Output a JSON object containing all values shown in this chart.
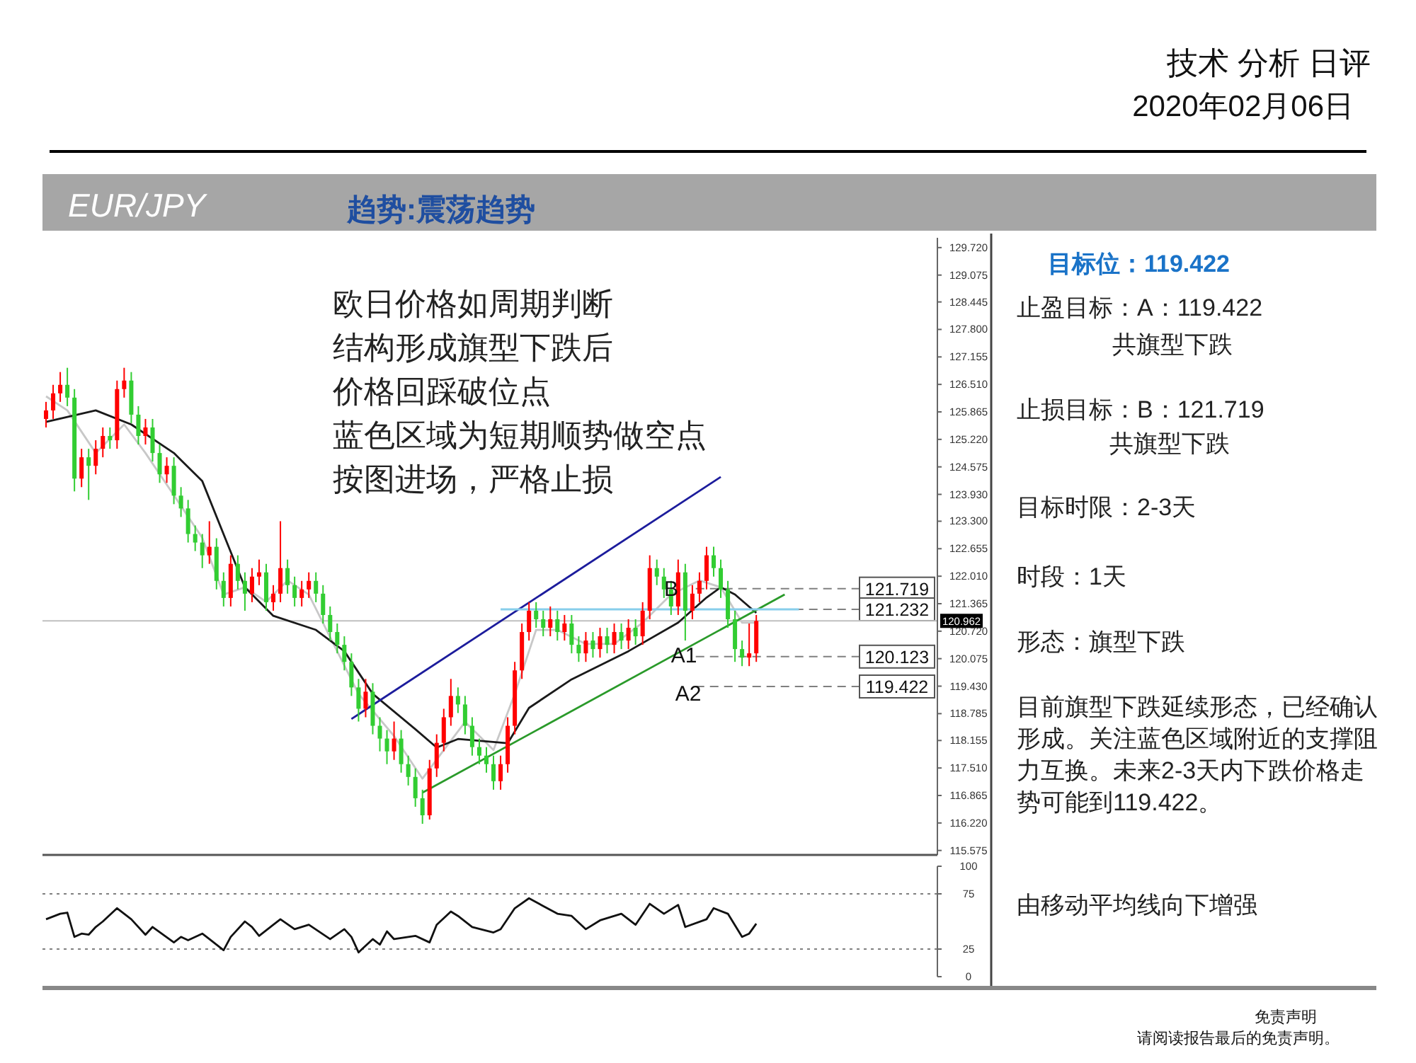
{
  "chart_data": [
    {
      "type": "candlestick",
      "title": "EUR/JPY",
      "subtitle": "趋势:震荡趋势",
      "categories": [
        null,
        null,
        null,
        null,
        null,
        null,
        null,
        null,
        null,
        null,
        null,
        null,
        null,
        null,
        null,
        null,
        null,
        null,
        null,
        null,
        null,
        null,
        null,
        null,
        null,
        null,
        null,
        null,
        null,
        null,
        null,
        null,
        null,
        null,
        null,
        null,
        null,
        null,
        null,
        null,
        null,
        null,
        null,
        null,
        null,
        null,
        null,
        null,
        null,
        null,
        null,
        null,
        null,
        null,
        null,
        null,
        null,
        null,
        null,
        null,
        null,
        null,
        null,
        null,
        null,
        null,
        null,
        null,
        null,
        null,
        null,
        null,
        null,
        null,
        null,
        null,
        null,
        null,
        null,
        null,
        null,
        null,
        null,
        null,
        null,
        null,
        null,
        null,
        null,
        null,
        null,
        null,
        null,
        null,
        null,
        null,
        null,
        null,
        null,
        null,
        null,
        null,
        null,
        null,
        null,
        null,
        null,
        null,
        null,
        null,
        null,
        null,
        null,
        null,
        null,
        null,
        null,
        null,
        null,
        null,
        null,
        null,
        null,
        null,
        null,
        null
      ],
      "ylim": [
        115.47,
        129.95
      ],
      "grid": false,
      "yticks": [
        {
          "value": 129.72,
          "label": "129.720"
        },
        {
          "value": 129.075,
          "label": "129.075"
        },
        {
          "value": 128.445,
          "label": "128.445"
        },
        {
          "value": 127.8,
          "label": "127.800"
        },
        {
          "value": 127.155,
          "label": "127.155"
        },
        {
          "value": 126.51,
          "label": "126.510"
        },
        {
          "value": 125.865,
          "label": "125.865"
        },
        {
          "value": 125.22,
          "label": "125.220"
        },
        {
          "value": 124.575,
          "label": "124.575"
        },
        {
          "value": 123.93,
          "label": "123.930"
        },
        {
          "value": 123.3,
          "label": "123.300"
        },
        {
          "value": 122.655,
          "label": "122.655"
        },
        {
          "value": 122.01,
          "label": "122.010"
        },
        {
          "value": 121.365,
          "label": "121.365"
        },
        {
          "value": 120.72,
          "label": "120.720"
        },
        {
          "value": 120.075,
          "label": "120.075"
        },
        {
          "value": 119.43,
          "label": "119.430"
        },
        {
          "value": 118.785,
          "label": "118.785"
        },
        {
          "value": 118.155,
          "label": "118.155"
        },
        {
          "value": 117.51,
          "label": "117.510"
        },
        {
          "value": 116.865,
          "label": "116.865"
        },
        {
          "value": 116.22,
          "label": "116.220"
        },
        {
          "value": 115.575,
          "label": "115.575"
        }
      ],
      "series": [
        {
          "ohlc": [
            [
              125.7,
              126.1,
              125.5,
              125.9
            ],
            [
              125.9,
              126.5,
              125.7,
              126.3
            ],
            [
              126.3,
              126.8,
              126.1,
              126.5
            ],
            [
              126.5,
              126.9,
              126.0,
              126.2
            ],
            [
              126.2,
              126.4,
              124.0,
              124.3
            ],
            [
              124.3,
              125.0,
              124.1,
              124.8
            ],
            [
              124.8,
              125.0,
              123.8,
              124.6
            ],
            [
              124.6,
              125.2,
              124.4,
              125.0
            ],
            [
              125.0,
              125.5,
              124.8,
              125.3
            ],
            [
              125.3,
              125.5,
              125.0,
              125.2
            ],
            [
              125.2,
              126.6,
              125.0,
              126.4
            ],
            [
              126.4,
              126.9,
              126.2,
              126.6
            ],
            [
              126.6,
              126.8,
              125.6,
              125.8
            ],
            [
              125.8,
              126.0,
              125.1,
              125.3
            ],
            [
              125.3,
              125.7,
              125.1,
              125.5
            ],
            [
              125.5,
              125.7,
              124.7,
              124.9
            ],
            [
              124.9,
              125.1,
              124.2,
              124.4
            ],
            [
              124.4,
              124.8,
              124.2,
              124.6
            ],
            [
              124.6,
              124.8,
              123.7,
              123.9
            ],
            [
              123.9,
              124.1,
              123.4,
              123.6
            ],
            [
              123.6,
              123.8,
              122.8,
              123.0
            ],
            [
              123.0,
              123.2,
              122.6,
              122.8
            ],
            [
              122.8,
              123.0,
              122.2,
              122.5
            ],
            [
              122.5,
              123.3,
              122.3,
              122.7
            ],
            [
              122.7,
              122.9,
              121.7,
              121.9
            ],
            [
              121.9,
              122.1,
              121.3,
              121.5
            ],
            [
              121.5,
              122.5,
              121.3,
              122.3
            ],
            [
              122.3,
              122.5,
              121.7,
              121.9
            ],
            [
              121.9,
              122.1,
              121.2,
              121.6
            ],
            [
              121.6,
              122.2,
              121.4,
              122.0
            ],
            [
              122.0,
              122.4,
              121.8,
              122.1
            ],
            [
              122.1,
              122.3,
              121.2,
              121.4
            ],
            [
              121.4,
              121.8,
              121.2,
              121.6
            ],
            [
              121.6,
              123.3,
              121.4,
              122.2
            ],
            [
              122.2,
              122.4,
              121.6,
              121.8
            ],
            [
              121.8,
              122.0,
              121.3,
              121.5
            ],
            [
              121.5,
              121.9,
              121.3,
              121.7
            ],
            [
              121.7,
              122.1,
              121.5,
              121.9
            ],
            [
              121.9,
              122.1,
              121.4,
              121.6
            ],
            [
              121.6,
              121.8,
              120.9,
              121.1
            ],
            [
              121.1,
              121.3,
              120.5,
              120.7
            ],
            [
              120.7,
              120.9,
              120.2,
              120.4
            ],
            [
              120.4,
              120.6,
              119.8,
              120.0
            ],
            [
              120.0,
              120.2,
              119.2,
              119.4
            ],
            [
              119.4,
              119.6,
              118.6,
              118.9
            ],
            [
              118.9,
              119.6,
              118.7,
              119.3
            ],
            [
              119.3,
              119.5,
              118.3,
              118.5
            ],
            [
              118.5,
              118.7,
              117.9,
              118.2
            ],
            [
              118.2,
              118.4,
              117.6,
              117.9
            ],
            [
              117.9,
              118.6,
              117.7,
              118.2
            ],
            [
              118.2,
              118.4,
              117.4,
              117.6
            ],
            [
              117.6,
              117.8,
              117.1,
              117.3
            ],
            [
              117.3,
              117.5,
              116.6,
              116.8
            ],
            [
              116.8,
              117.0,
              116.2,
              116.4
            ],
            [
              116.4,
              117.7,
              116.3,
              117.5
            ],
            [
              117.5,
              118.3,
              117.3,
              118.1
            ],
            [
              118.1,
              118.9,
              117.9,
              118.7
            ],
            [
              118.7,
              119.6,
              118.5,
              119.2
            ],
            [
              119.2,
              119.4,
              118.8,
              119.0
            ],
            [
              119.0,
              119.2,
              118.3,
              118.5
            ],
            [
              118.5,
              118.7,
              117.8,
              118.0
            ],
            [
              118.0,
              118.2,
              117.6,
              117.8
            ],
            [
              117.8,
              118.0,
              117.4,
              117.6
            ],
            [
              117.6,
              117.8,
              117.0,
              117.2
            ],
            [
              117.2,
              117.8,
              117.0,
              117.6
            ],
            [
              117.6,
              118.7,
              117.4,
              118.5
            ],
            [
              118.5,
              120.0,
              118.3,
              119.8
            ],
            [
              119.8,
              120.9,
              119.6,
              120.7
            ],
            [
              120.7,
              121.4,
              120.5,
              121.2
            ],
            [
              121.2,
              121.4,
              120.8,
              121.0
            ],
            [
              121.0,
              121.2,
              120.6,
              120.8
            ],
            [
              120.8,
              121.3,
              120.6,
              121.0
            ],
            [
              121.0,
              121.2,
              120.5,
              120.7
            ],
            [
              120.7,
              121.1,
              120.5,
              120.9
            ],
            [
              120.9,
              121.1,
              120.2,
              120.4
            ],
            [
              120.4,
              120.6,
              120.0,
              120.2
            ],
            [
              120.2,
              120.7,
              120.0,
              120.5
            ],
            [
              120.5,
              120.7,
              120.1,
              120.3
            ],
            [
              120.3,
              120.8,
              120.1,
              120.6
            ],
            [
              120.6,
              120.8,
              120.2,
              120.4
            ],
            [
              120.4,
              120.9,
              120.2,
              120.7
            ],
            [
              120.7,
              120.9,
              120.3,
              120.5
            ],
            [
              120.5,
              121.0,
              120.3,
              120.8
            ],
            [
              120.8,
              121.0,
              120.4,
              120.6
            ],
            [
              120.6,
              121.4,
              120.4,
              121.2
            ],
            [
              121.2,
              122.5,
              121.0,
              122.2
            ],
            [
              122.2,
              122.4,
              121.8,
              122.0
            ],
            [
              122.0,
              122.2,
              121.5,
              121.7
            ],
            [
              121.7,
              121.9,
              121.1,
              121.3
            ],
            [
              121.3,
              122.4,
              121.1,
              122.1
            ],
            [
              122.1,
              122.3,
              120.5,
              121.2
            ],
            [
              121.2,
              121.8,
              121.0,
              121.6
            ],
            [
              121.6,
              122.1,
              121.4,
              121.9
            ],
            [
              121.9,
              122.7,
              121.7,
              122.5
            ],
            [
              122.5,
              122.7,
              122.0,
              122.2
            ],
            [
              122.2,
              122.4,
              121.5,
              121.7
            ],
            [
              121.7,
              121.9,
              120.8,
              121.0
            ],
            [
              121.0,
              121.2,
              120.0,
              120.3
            ],
            [
              120.3,
              120.5,
              119.9,
              120.1
            ],
            [
              120.1,
              120.9,
              119.9,
              120.2
            ],
            [
              120.2,
              121.1,
              120.0,
              120.96
            ],
            null,
            null,
            null,
            null,
            null,
            null,
            null,
            null,
            null,
            null,
            null,
            null,
            null,
            null,
            null,
            null,
            null,
            null,
            null,
            null,
            null,
            null,
            null,
            null,
            null
          ],
          "colors": [
            "#ff0000",
            "#ff0000",
            "#ff0000",
            "#32cd32",
            "#32cd32",
            "#ff0000",
            "#32cd32",
            "#ff0000",
            "#ff0000",
            "#32cd32",
            "#ff0000",
            "#ff0000",
            "#32cd32",
            "#32cd32",
            "#ff0000",
            "#32cd32",
            "#32cd32",
            "#ff0000",
            "#32cd32",
            "#32cd32",
            "#32cd32",
            "#32cd32",
            "#32cd32",
            "#ff0000",
            "#32cd32",
            "#32cd32",
            "#ff0000",
            "#32cd32",
            "#32cd32",
            "#ff0000",
            "#ff0000",
            "#32cd32",
            "#ff0000",
            "#ff0000",
            "#32cd32",
            "#32cd32",
            "#ff0000",
            "#ff0000",
            "#32cd32",
            "#32cd32",
            "#32cd32",
            "#32cd32",
            "#32cd32",
            "#32cd32",
            "#32cd32",
            "#ff0000",
            "#32cd32",
            "#32cd32",
            "#32cd32",
            "#ff0000",
            "#32cd32",
            "#32cd32",
            "#32cd32",
            "#32cd32",
            "#ff0000",
            "#ff0000",
            "#ff0000",
            "#ff0000",
            "#32cd32",
            "#32cd32",
            "#32cd32",
            "#32cd32",
            "#32cd32",
            "#32cd32",
            "#ff0000",
            "#ff0000",
            "#ff0000",
            "#ff0000",
            "#ff0000",
            "#32cd32",
            "#32cd32",
            "#ff0000",
            "#32cd32",
            "#ff0000",
            "#32cd32",
            "#32cd32",
            "#ff0000",
            "#32cd32",
            "#ff0000",
            "#32cd32",
            "#ff0000",
            "#32cd32",
            "#ff0000",
            "#32cd32",
            "#ff0000",
            "#ff0000",
            "#32cd32",
            "#32cd32",
            "#32cd32",
            "#ff0000",
            "#32cd32",
            "#ff0000",
            "#ff0000",
            "#ff0000",
            "#32cd32",
            "#32cd32",
            "#32cd32",
            "#32cd32",
            "#32cd32",
            "#ff0000",
            "#ff0000",
            null,
            null,
            null,
            null,
            null,
            null,
            null,
            null,
            null,
            null,
            null,
            null,
            null,
            null,
            null,
            null,
            null,
            null,
            null,
            null,
            null,
            null,
            null,
            null,
            null
          ]
        },
        {
          "type": "line",
          "color": "#c8c8c8",
          "values": [
            126.23,
            null,
            null,
            125.9,
            null,
            null,
            null,
            124.9,
            null,
            null,
            null,
            125.57,
            null,
            null,
            124.9,
            null,
            null,
            null,
            123.91,
            null,
            null,
            null,
            122.91,
            null,
            null,
            121.58,
            null,
            null,
            121.75,
            null,
            null,
            121.41,
            null,
            null,
            121.91,
            null,
            null,
            121.58,
            null,
            null,
            120.58,
            null,
            null,
            null,
            119.25,
            null,
            null,
            null,
            null,
            118.26,
            null,
            null,
            null,
            117.26,
            null,
            null,
            117.93,
            null,
            null,
            118.59,
            null,
            null,
            null,
            117.93,
            null,
            null,
            119.25,
            null,
            null,
            120.75,
            null,
            null,
            120.75,
            null,
            null,
            null,
            120.42,
            null,
            null,
            null,
            120.42,
            null,
            null,
            null,
            120.92,
            null,
            null,
            null,
            121.58,
            null,
            null,
            null,
            121.91,
            null,
            null,
            121.75,
            null,
            null,
            120.92,
            null,
            120.92,
            null,
            null,
            null,
            null,
            null,
            null,
            null,
            null,
            null,
            null,
            null,
            null,
            null,
            null,
            null,
            null,
            null,
            null,
            null,
            null,
            null,
            null,
            null,
            null,
            null
          ]
        },
        {
          "type": "line",
          "color": "#1a1a1a",
          "values": [
            125.63,
            null,
            null,
            null,
            null,
            null,
            null,
            125.9,
            null,
            null,
            null,
            null,
            125.57,
            null,
            null,
            null,
            null,
            null,
            124.9,
            null,
            null,
            null,
            124.24,
            null,
            null,
            null,
            122.58,
            null,
            121.75,
            null,
            null,
            null,
            121.08,
            null,
            null,
            null,
            null,
            null,
            120.75,
            null,
            null,
            null,
            120.25,
            null,
            null,
            null,
            119.25,
            null,
            null,
            null,
            null,
            null,
            118.42,
            null,
            null,
            117.99,
            null,
            null,
            118.19,
            null,
            null,
            null,
            null,
            null,
            null,
            118.09,
            null,
            null,
            118.92,
            null,
            null,
            null,
            null,
            null,
            119.59,
            null,
            null,
            null,
            null,
            null,
            null,
            null,
            120.25,
            null,
            null,
            null,
            null,
            null,
            null,
            120.92,
            null,
            null,
            null,
            121.51,
            null,
            121.75,
            null,
            121.58,
            null,
            null,
            121.15,
            null,
            null,
            null,
            null,
            null,
            null,
            null,
            null,
            null,
            null,
            null,
            null,
            null,
            null,
            null,
            null,
            null,
            null,
            null,
            null,
            null,
            null,
            null,
            null,
            null
          ]
        },
        {
          "type": "line",
          "color": "#1c1c9c",
          "values": [
            null,
            null,
            null,
            null,
            null,
            null,
            null,
            null,
            null,
            null,
            null,
            null,
            null,
            null,
            null,
            null,
            null,
            null,
            null,
            null,
            null,
            null,
            null,
            null,
            null,
            null,
            null,
            null,
            null,
            null,
            null,
            null,
            null,
            null,
            null,
            null,
            null,
            null,
            null,
            null,
            null,
            null,
            null,
            118.66,
            null,
            null,
            null,
            null,
            null,
            null,
            null,
            null,
            null,
            null,
            null,
            null,
            null,
            null,
            null,
            null,
            null,
            null,
            null,
            null,
            null,
            null,
            null,
            null,
            null,
            null,
            null,
            null,
            null,
            null,
            null,
            null,
            null,
            null,
            null,
            null,
            null,
            null,
            null,
            null,
            null,
            null,
            null,
            null,
            null,
            null,
            null,
            null,
            null,
            null,
            null,
            124.34,
            null,
            null,
            null,
            null,
            null,
            null,
            null,
            null,
            null,
            null,
            null,
            null,
            null,
            null,
            null,
            null,
            null,
            null,
            null,
            null,
            null,
            null,
            null,
            null,
            null,
            null,
            null,
            null,
            null,
            null
          ]
        },
        {
          "type": "line",
          "color": "#2a9a2a",
          "values": [
            null,
            null,
            null,
            null,
            null,
            null,
            null,
            null,
            null,
            null,
            null,
            null,
            null,
            null,
            null,
            null,
            null,
            null,
            null,
            null,
            null,
            null,
            null,
            null,
            null,
            null,
            null,
            null,
            null,
            null,
            null,
            null,
            null,
            null,
            null,
            null,
            null,
            null,
            null,
            null,
            null,
            null,
            null,
            null,
            null,
            null,
            null,
            null,
            null,
            null,
            null,
            null,
            null,
            116.93,
            null,
            null,
            null,
            null,
            null,
            null,
            null,
            null,
            null,
            null,
            null,
            null,
            null,
            null,
            null,
            null,
            null,
            null,
            null,
            null,
            null,
            null,
            null,
            null,
            null,
            null,
            null,
            null,
            null,
            null,
            null,
            null,
            null,
            null,
            null,
            null,
            null,
            null,
            null,
            null,
            null,
            null,
            null,
            null,
            null,
            null,
            null,
            null,
            null,
            null,
            121.58,
            null,
            null,
            null,
            null,
            null,
            null,
            null,
            null,
            null,
            null,
            null,
            null,
            null,
            null,
            null,
            null,
            null,
            null,
            null,
            null,
            null
          ]
        },
        {
          "type": "line",
          "color": "#87ceeb",
          "values": [
            null,
            null,
            null,
            null,
            null,
            null,
            null,
            null,
            null,
            null,
            null,
            null,
            null,
            null,
            null,
            null,
            null,
            null,
            null,
            null,
            null,
            null,
            null,
            null,
            null,
            null,
            null,
            null,
            null,
            null,
            null,
            null,
            null,
            null,
            null,
            null,
            null,
            null,
            null,
            null,
            null,
            null,
            null,
            null,
            null,
            null,
            null,
            null,
            null,
            null,
            null,
            null,
            null,
            null,
            null,
            null,
            null,
            null,
            null,
            null,
            null,
            null,
            null,
            null,
            121.232,
            null,
            null,
            null,
            null,
            null,
            null,
            null,
            null,
            null,
            null,
            null,
            null,
            null,
            null,
            null,
            null,
            null,
            null,
            null,
            null,
            null,
            null,
            null,
            null,
            null,
            null,
            null,
            null,
            null,
            null,
            null,
            null,
            null,
            null,
            null,
            null,
            null,
            null,
            null,
            null,
            null,
            121.232,
            null,
            null,
            null,
            null,
            null,
            null,
            null,
            null,
            null,
            null,
            null,
            null,
            null,
            null,
            null,
            null,
            null,
            null,
            null
          ]
        }
      ],
      "ref_lines": [
        {
          "axis": "y",
          "value": 121.719,
          "label": "121.719",
          "line_style": "dashed",
          "color": "#808080"
        },
        {
          "axis": "y",
          "value": 121.232,
          "label": "121.232",
          "line_style": "dashed",
          "color": "#808080"
        },
        {
          "axis": "y",
          "value": 120.123,
          "label": "120.123",
          "line_style": "dashed",
          "color": "#808080"
        },
        {
          "axis": "y",
          "value": 119.422,
          "label": "119.422",
          "line_style": "dashed",
          "color": "#808080"
        },
        {
          "axis": "y",
          "value": 120.962,
          "label": "120.962",
          "line_style": "solid",
          "color": "#c0c0c0"
        }
      ],
      "annotations": [
        "技术 分析 日评",
        "2020年02月06日",
        "欧日价格如周期判断",
        "结构形成旗型下跌后",
        "价格回踩破位点",
        "蓝色区域为短期顺势做空点",
        "按图进场，严格止损",
        "目标位：119.422",
        "止盈目标：A：119.422",
        "共旗型下跌",
        "止损目标：B：121.719",
        "共旗型下跌",
        "目标时限：2-3天",
        "时段：1天",
        "形态：旗型下跌",
        "目前旗型下跌延续形态，已经确认形成。关注蓝色区域附近的支撑阻力互换。未来2-3天内下跌价格走势可能到119.422。",
        "由移动平均线向下增强",
        "免责声明",
        "请阅读报告最后的免责声明。",
        "B",
        "A1",
        "A2"
      ]
    },
    {
      "type": "line",
      "categories": [
        null,
        null,
        null,
        null,
        null,
        null,
        null,
        null,
        null,
        null,
        null,
        null,
        null,
        null,
        null,
        null,
        null,
        null,
        null,
        null,
        null,
        null,
        null,
        null,
        null,
        null,
        null,
        null,
        null,
        null,
        null,
        null,
        null,
        null,
        null,
        null,
        null,
        null,
        null,
        null,
        null,
        null,
        null,
        null,
        null,
        null,
        null,
        null,
        null,
        null,
        null,
        null,
        null,
        null,
        null,
        null,
        null,
        null,
        null,
        null,
        null,
        null,
        null,
        null,
        null,
        null,
        null,
        null,
        null,
        null,
        null,
        null,
        null,
        null,
        null,
        null,
        null,
        null,
        null,
        null,
        null,
        null,
        null,
        null,
        null,
        null,
        null,
        null,
        null,
        null,
        null,
        null,
        null,
        null,
        null,
        null,
        null,
        null,
        null,
        null,
        null,
        null,
        null,
        null,
        null,
        null,
        null,
        null,
        null,
        null,
        null,
        null,
        null,
        null,
        null,
        null,
        null,
        null,
        null,
        null,
        null,
        null,
        null,
        null,
        null,
        null
      ],
      "ylim": [
        0,
        100
      ],
      "yticks": [
        0,
        25,
        75,
        100
      ],
      "grid": false,
      "series": [
        {
          "color": "#111111",
          "values": [
            52,
            null,
            57,
            58,
            36,
            39,
            38,
            45,
            50,
            null,
            62,
            null,
            52,
            null,
            38,
            45,
            null,
            null,
            31,
            36,
            33,
            null,
            39,
            34,
            null,
            24,
            36,
            null,
            50,
            45,
            37,
            null,
            47,
            52,
            null,
            43,
            null,
            47,
            null,
            null,
            34,
            null,
            43,
            36,
            22,
            null,
            34,
            29,
            41,
            34,
            null,
            null,
            37,
            null,
            31,
            47,
            null,
            59,
            55,
            null,
            45,
            null,
            null,
            40,
            43,
            null,
            62,
            null,
            71,
            null,
            64,
            null,
            57,
            null,
            55,
            null,
            43,
            null,
            51,
            null,
            null,
            57,
            null,
            47,
            null,
            66,
            null,
            57,
            null,
            65,
            45,
            null,
            null,
            52,
            62,
            null,
            57,
            null,
            36,
            39,
            48,
            null,
            null,
            null,
            null,
            null,
            null,
            null,
            null,
            null,
            null,
            null,
            null,
            null,
            null,
            null,
            null,
            null,
            null,
            null,
            null,
            null,
            null,
            null,
            null,
            null
          ]
        }
      ],
      "ref_lines": [
        {
          "axis": "y",
          "value": 75,
          "line_style": "dotted",
          "color": "#808080"
        },
        {
          "axis": "y",
          "value": 25,
          "line_style": "dotted",
          "color": "#808080"
        }
      ]
    }
  ]
}
